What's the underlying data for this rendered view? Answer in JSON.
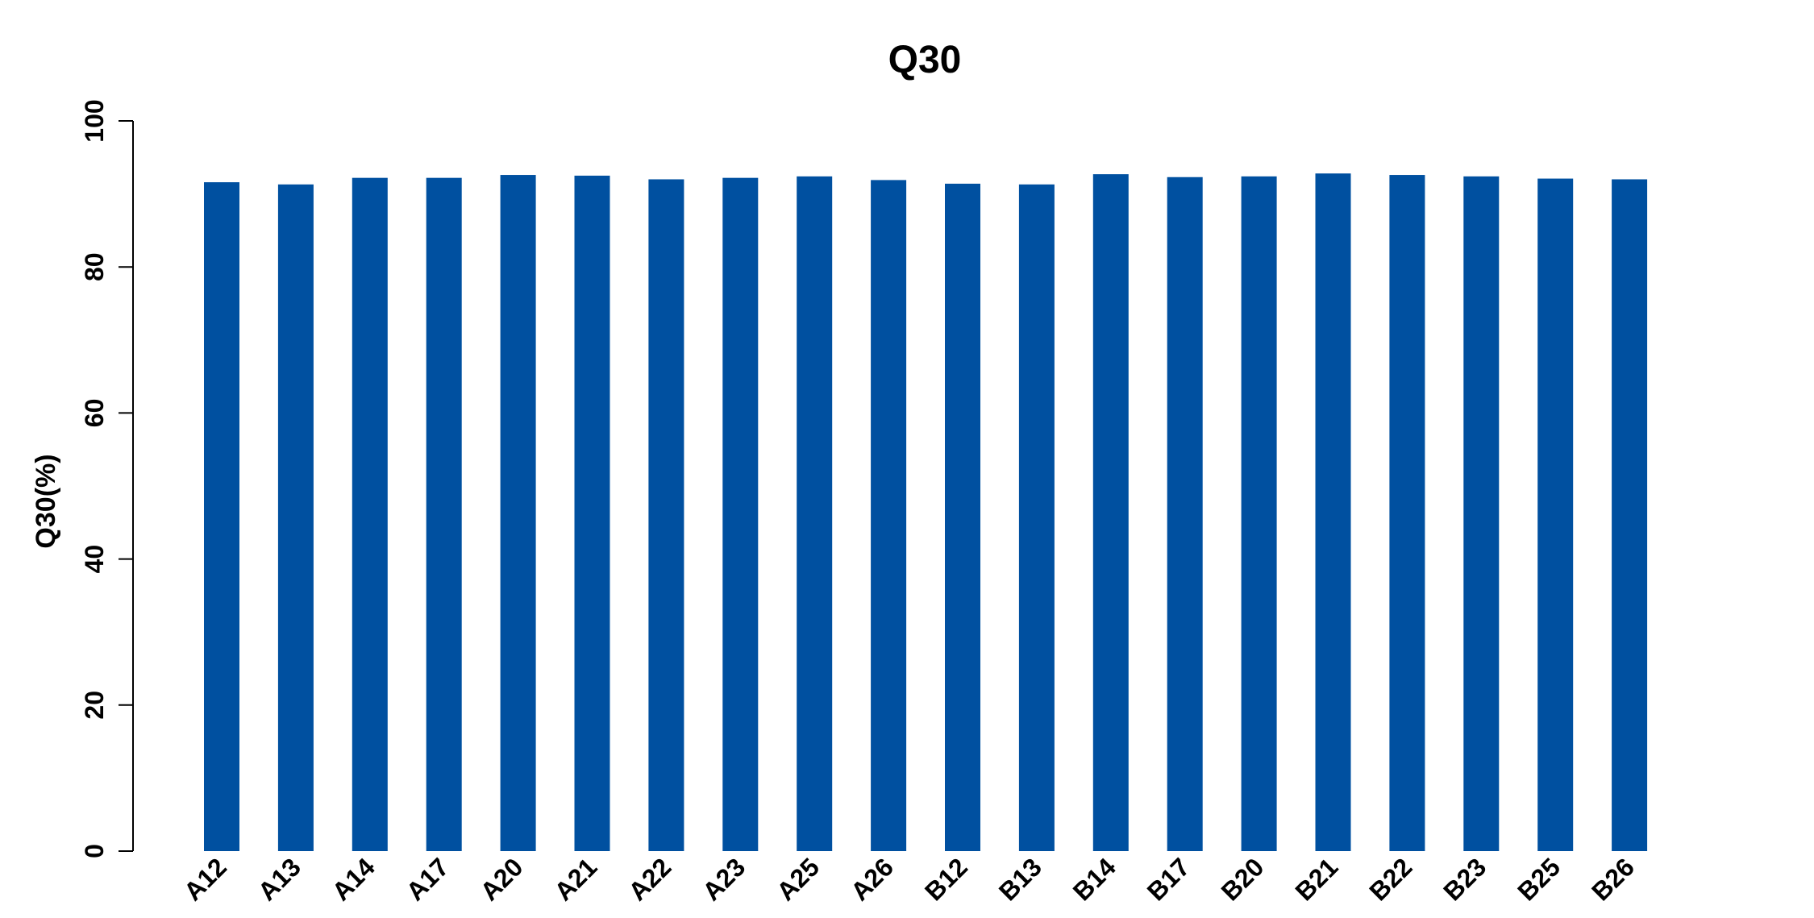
{
  "chart_data": {
    "type": "bar",
    "title": "Q30",
    "xlabel": "",
    "ylabel": "Q30(%)",
    "ylim": [
      0,
      100
    ],
    "yticks": [
      0,
      20,
      40,
      60,
      80,
      100
    ],
    "grid": false,
    "categories": [
      "A12",
      "A13",
      "A14",
      "A17",
      "A20",
      "A21",
      "A22",
      "A23",
      "A25",
      "A26",
      "B12",
      "B13",
      "B14",
      "B17",
      "B20",
      "B21",
      "B22",
      "B23",
      "B25",
      "B26"
    ],
    "values": [
      91.6,
      91.3,
      92.2,
      92.2,
      92.6,
      92.5,
      92.0,
      92.2,
      92.4,
      91.9,
      91.4,
      91.3,
      92.7,
      92.3,
      92.4,
      92.8,
      92.6,
      92.4,
      92.1,
      92.0
    ],
    "bar_color": "#0050a0"
  }
}
